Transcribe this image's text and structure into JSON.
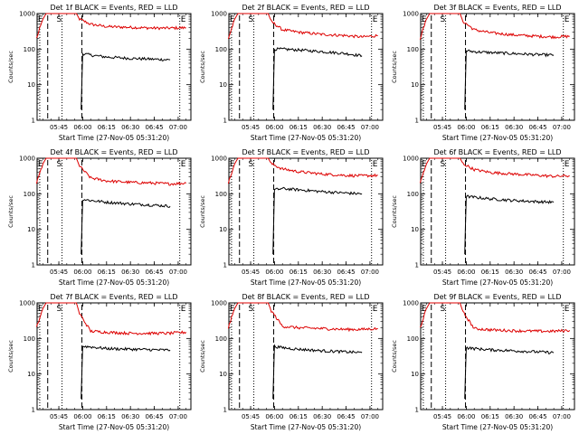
{
  "colors": {
    "events": "#000000",
    "lld": "#dd0000",
    "frame": "#000000"
  },
  "chart_data": [
    {
      "type": "line",
      "title": "Det 1f BLACK = Events, RED = LLD",
      "ylabel": "Counts/sec",
      "xlabel": "Start Time (27-Nov-05 05:31:20)",
      "yscale": "log",
      "ylim": [
        1,
        1000
      ],
      "x_ticks": [
        "05:45",
        "06:00",
        "06:15",
        "06:30",
        "06:45",
        "07:00"
      ],
      "y_ticks": [
        "1",
        "10",
        "100",
        "1000"
      ],
      "markers": {
        "E1": "E",
        "S": "S",
        "E2": "E"
      },
      "series": [
        {
          "color": "lld",
          "points": [
            [
              "05:31",
              200
            ],
            [
              "05:35",
              700
            ],
            [
              "05:37",
              1000
            ],
            [
              "05:56",
              1000
            ],
            [
              "05:58",
              700
            ],
            [
              "06:05",
              500
            ],
            [
              "06:15",
              430
            ],
            [
              "06:30",
              410
            ],
            [
              "06:45",
              390
            ],
            [
              "06:55",
              390
            ],
            [
              "07:05",
              400
            ]
          ]
        },
        {
          "color": "events",
          "points": [
            [
              "05:59",
              2
            ],
            [
              "06:00",
              75
            ],
            [
              "06:05",
              68
            ],
            [
              "06:15",
              60
            ],
            [
              "06:30",
              55
            ],
            [
              "06:45",
              52
            ],
            [
              "06:55",
              50
            ]
          ]
        }
      ]
    },
    {
      "type": "line",
      "title": "Det 2f BLACK = Events, RED = LLD",
      "ylabel": "Counts/sec",
      "xlabel": "Start Time (27-Nov-05 05:31:20)",
      "yscale": "log",
      "ylim": [
        1,
        1000
      ],
      "x_ticks": [
        "05:45",
        "06:00",
        "06:15",
        "06:30",
        "06:45",
        "07:00"
      ],
      "y_ticks": [
        "1",
        "10",
        "100",
        "1000"
      ],
      "markers": {
        "E1": "E",
        "S": "S",
        "E2": "E"
      },
      "series": [
        {
          "color": "lld",
          "points": [
            [
              "05:31",
              200
            ],
            [
              "05:35",
              700
            ],
            [
              "05:37",
              1000
            ],
            [
              "05:56",
              1000
            ],
            [
              "05:58",
              600
            ],
            [
              "06:05",
              350
            ],
            [
              "06:15",
              300
            ],
            [
              "06:30",
              260
            ],
            [
              "06:45",
              240
            ],
            [
              "06:55",
              220
            ],
            [
              "07:05",
              240
            ]
          ]
        },
        {
          "color": "events",
          "points": [
            [
              "05:59",
              2
            ],
            [
              "06:00",
              100
            ],
            [
              "06:05",
              100
            ],
            [
              "06:15",
              95
            ],
            [
              "06:30",
              85
            ],
            [
              "06:45",
              75
            ],
            [
              "06:55",
              65
            ]
          ]
        }
      ]
    },
    {
      "type": "line",
      "title": "Det 3f BLACK = Events, RED = LLD",
      "ylabel": "Counts/sec",
      "xlabel": "Start Time (27-Nov-05 05:31:20)",
      "yscale": "log",
      "ylim": [
        1,
        1000
      ],
      "x_ticks": [
        "05:45",
        "06:00",
        "06:15",
        "06:30",
        "06:45",
        "07:00"
      ],
      "y_ticks": [
        "1",
        "10",
        "100",
        "1000"
      ],
      "markers": {
        "E1": "E",
        "S": "S",
        "E2": "E"
      },
      "series": [
        {
          "color": "lld",
          "points": [
            [
              "05:31",
              200
            ],
            [
              "05:35",
              700
            ],
            [
              "05:37",
              1000
            ],
            [
              "05:56",
              1000
            ],
            [
              "05:58",
              600
            ],
            [
              "06:05",
              350
            ],
            [
              "06:15",
              290
            ],
            [
              "06:30",
              250
            ],
            [
              "06:45",
              230
            ],
            [
              "06:55",
              220
            ],
            [
              "07:05",
              230
            ]
          ]
        },
        {
          "color": "events",
          "points": [
            [
              "05:59",
              2
            ],
            [
              "06:00",
              90
            ],
            [
              "06:05",
              85
            ],
            [
              "06:15",
              80
            ],
            [
              "06:30",
              75
            ],
            [
              "06:45",
              70
            ],
            [
              "06:55",
              68
            ]
          ]
        }
      ]
    },
    {
      "type": "line",
      "title": "Det 4f BLACK = Events, RED = LLD",
      "ylabel": "Counts/sec",
      "xlabel": "Start Time (27-Nov-05 05:31:20)",
      "yscale": "log",
      "ylim": [
        1,
        1000
      ],
      "x_ticks": [
        "05:45",
        "06:00",
        "06:15",
        "06:30",
        "06:45",
        "07:00"
      ],
      "y_ticks": [
        "1",
        "10",
        "100",
        "1000"
      ],
      "markers": {
        "E1": "E",
        "S": "S",
        "E2": "E"
      },
      "series": [
        {
          "color": "lld",
          "points": [
            [
              "05:31",
              200
            ],
            [
              "05:35",
              700
            ],
            [
              "05:37",
              1000
            ],
            [
              "05:56",
              1000
            ],
            [
              "05:58",
              600
            ],
            [
              "06:05",
              280
            ],
            [
              "06:15",
              230
            ],
            [
              "06:30",
              210
            ],
            [
              "06:45",
              200
            ],
            [
              "06:55",
              190
            ],
            [
              "07:05",
              200
            ]
          ]
        },
        {
          "color": "events",
          "points": [
            [
              "05:59",
              2
            ],
            [
              "06:00",
              70
            ],
            [
              "06:05",
              65
            ],
            [
              "06:15",
              58
            ],
            [
              "06:30",
              52
            ],
            [
              "06:45",
              48
            ],
            [
              "06:55",
              45
            ]
          ]
        }
      ]
    },
    {
      "type": "line",
      "title": "Det 5f BLACK = Events, RED = LLD",
      "ylabel": "Counts/sec",
      "xlabel": "Start Time (27-Nov-05 05:31:20)",
      "yscale": "log",
      "ylim": [
        1,
        1000
      ],
      "x_ticks": [
        "05:45",
        "06:00",
        "06:15",
        "06:30",
        "06:45",
        "07:00"
      ],
      "y_ticks": [
        "1",
        "10",
        "100",
        "1000"
      ],
      "markers": {
        "E1": "E",
        "S": "S",
        "E2": "E"
      },
      "series": [
        {
          "color": "lld",
          "points": [
            [
              "05:31",
              200
            ],
            [
              "05:35",
              700
            ],
            [
              "05:37",
              1000
            ],
            [
              "05:56",
              1000
            ],
            [
              "05:58",
              700
            ],
            [
              "06:05",
              500
            ],
            [
              "06:15",
              420
            ],
            [
              "06:30",
              360
            ],
            [
              "06:45",
              330
            ],
            [
              "06:55",
              320
            ],
            [
              "07:05",
              330
            ]
          ]
        },
        {
          "color": "events",
          "points": [
            [
              "05:59",
              2
            ],
            [
              "06:00",
              130
            ],
            [
              "06:05",
              140
            ],
            [
              "06:15",
              130
            ],
            [
              "06:30",
              115
            ],
            [
              "06:45",
              105
            ],
            [
              "06:55",
              100
            ]
          ]
        }
      ]
    },
    {
      "type": "line",
      "title": "Det 6f BLACK = Events, RED = LLD",
      "ylabel": "Counts/sec",
      "xlabel": "Start Time (27-Nov-05 05:31:20)",
      "yscale": "log",
      "ylim": [
        1,
        1000
      ],
      "x_ticks": [
        "05:45",
        "06:00",
        "06:15",
        "06:30",
        "06:45",
        "07:00"
      ],
      "y_ticks": [
        "1",
        "10",
        "100",
        "1000"
      ],
      "markers": {
        "E1": "E",
        "S": "S",
        "E2": "E"
      },
      "series": [
        {
          "color": "lld",
          "points": [
            [
              "05:31",
              200
            ],
            [
              "05:35",
              700
            ],
            [
              "05:37",
              1000
            ],
            [
              "05:56",
              1000
            ],
            [
              "05:58",
              700
            ],
            [
              "06:05",
              480
            ],
            [
              "06:15",
              400
            ],
            [
              "06:30",
              360
            ],
            [
              "06:45",
              330
            ],
            [
              "06:55",
              310
            ],
            [
              "07:05",
              320
            ]
          ]
        },
        {
          "color": "events",
          "points": [
            [
              "05:59",
              2
            ],
            [
              "06:00",
              85
            ],
            [
              "06:05",
              80
            ],
            [
              "06:15",
              72
            ],
            [
              "06:30",
              65
            ],
            [
              "06:45",
              60
            ],
            [
              "06:55",
              58
            ]
          ]
        }
      ]
    },
    {
      "type": "line",
      "title": "Det 7f BLACK = Events, RED = LLD",
      "ylabel": "Counts/sec",
      "xlabel": "Start Time (27-Nov-05 05:31:20)",
      "yscale": "log",
      "ylim": [
        1,
        1000
      ],
      "x_ticks": [
        "05:45",
        "06:00",
        "06:15",
        "06:30",
        "06:45",
        "07:00"
      ],
      "y_ticks": [
        "1",
        "10",
        "100",
        "1000"
      ],
      "markers": {
        "E1": "E",
        "S": "S",
        "E2": "E"
      },
      "series": [
        {
          "color": "lld",
          "points": [
            [
              "05:31",
              200
            ],
            [
              "05:35",
              700
            ],
            [
              "05:37",
              1000
            ],
            [
              "05:56",
              1000
            ],
            [
              "05:58",
              500
            ],
            [
              "06:05",
              160
            ],
            [
              "06:15",
              150
            ],
            [
              "06:30",
              140
            ],
            [
              "06:45",
              140
            ],
            [
              "06:55",
              140
            ],
            [
              "07:05",
              150
            ]
          ]
        },
        {
          "color": "events",
          "points": [
            [
              "05:59",
              2
            ],
            [
              "06:00",
              60
            ],
            [
              "06:05",
              58
            ],
            [
              "06:15",
              52
            ],
            [
              "06:30",
              50
            ],
            [
              "06:45",
              48
            ],
            [
              "06:55",
              47
            ]
          ]
        }
      ]
    },
    {
      "type": "line",
      "title": "Det 8f BLACK = Events, RED = LLD",
      "ylabel": "Counts/sec",
      "xlabel": "Start Time (27-Nov-05 05:31:20)",
      "yscale": "log",
      "ylim": [
        1,
        1000
      ],
      "x_ticks": [
        "05:45",
        "06:00",
        "06:15",
        "06:30",
        "06:45",
        "07:00"
      ],
      "y_ticks": [
        "1",
        "10",
        "100",
        "1000"
      ],
      "markers": {
        "E1": "E",
        "S": "S",
        "E2": "E"
      },
      "series": [
        {
          "color": "lld",
          "points": [
            [
              "05:31",
              200
            ],
            [
              "05:35",
              700
            ],
            [
              "05:37",
              1000
            ],
            [
              "05:56",
              1000
            ],
            [
              "05:58",
              600
            ],
            [
              "06:05",
              220
            ],
            [
              "06:15",
              200
            ],
            [
              "06:30",
              190
            ],
            [
              "06:45",
              180
            ],
            [
              "06:55",
              180
            ],
            [
              "07:05",
              190
            ]
          ]
        },
        {
          "color": "events",
          "points": [
            [
              "05:59",
              2
            ],
            [
              "06:00",
              60
            ],
            [
              "06:05",
              55
            ],
            [
              "06:15",
              50
            ],
            [
              "06:30",
              45
            ],
            [
              "06:45",
              42
            ],
            [
              "06:55",
              40
            ]
          ]
        }
      ]
    },
    {
      "type": "line",
      "title": "Det 9f BLACK = Events, RED = LLD",
      "ylabel": "Counts/sec",
      "xlabel": "Start Time (27-Nov-05 05:31:20)",
      "yscale": "log",
      "ylim": [
        1,
        1000
      ],
      "x_ticks": [
        "05:45",
        "06:00",
        "06:15",
        "06:30",
        "06:45",
        "07:00"
      ],
      "y_ticks": [
        "1",
        "10",
        "100",
        "1000"
      ],
      "markers": {
        "E1": "E",
        "S": "S",
        "E2": "E"
      },
      "series": [
        {
          "color": "lld",
          "points": [
            [
              "05:31",
              200
            ],
            [
              "05:35",
              700
            ],
            [
              "05:37",
              1000
            ],
            [
              "05:56",
              1000
            ],
            [
              "05:58",
              550
            ],
            [
              "06:05",
              190
            ],
            [
              "06:15",
              175
            ],
            [
              "06:30",
              165
            ],
            [
              "06:45",
              160
            ],
            [
              "06:55",
              160
            ],
            [
              "07:05",
              170
            ]
          ]
        },
        {
          "color": "events",
          "points": [
            [
              "05:59",
              2
            ],
            [
              "06:00",
              55
            ],
            [
              "06:05",
              52
            ],
            [
              "06:15",
              48
            ],
            [
              "06:30",
              45
            ],
            [
              "06:45",
              42
            ],
            [
              "06:55",
              40
            ]
          ]
        }
      ]
    }
  ]
}
